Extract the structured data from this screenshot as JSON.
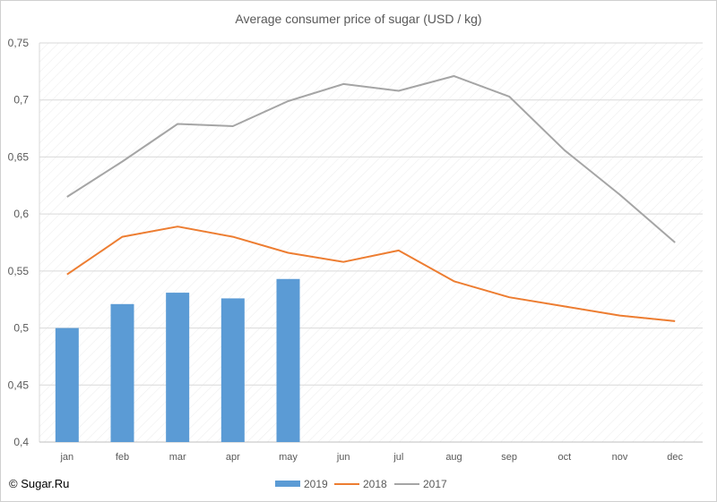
{
  "chart_data": {
    "type": "bar",
    "title": "Average consumer price of sugar (USD / kg)",
    "xlabel": "",
    "ylabel": "",
    "categories": [
      "jan",
      "feb",
      "mar",
      "apr",
      "may",
      "jun",
      "jul",
      "aug",
      "sep",
      "oct",
      "nov",
      "dec"
    ],
    "ylim": [
      0.4,
      0.75
    ],
    "yticks": [
      0.4,
      0.45,
      0.5,
      0.55,
      0.6,
      0.65,
      0.7,
      0.75
    ],
    "ytick_labels": [
      "0,4",
      "0,45",
      "0,5",
      "0,55",
      "0,6",
      "0,65",
      "0,7",
      "0,75"
    ],
    "grid": true,
    "legend_position": "bottom",
    "series": [
      {
        "name": "2019",
        "type": "bar",
        "color": "#5b9bd5",
        "values": [
          0.5,
          0.521,
          0.531,
          0.526,
          0.543,
          null,
          null,
          null,
          null,
          null,
          null,
          null
        ]
      },
      {
        "name": "2018",
        "type": "line",
        "color": "#ed7d31",
        "values": [
          0.547,
          0.58,
          0.589,
          0.58,
          0.566,
          0.558,
          0.568,
          0.541,
          0.527,
          0.519,
          0.511,
          0.506
        ]
      },
      {
        "name": "2017",
        "type": "line",
        "color": "#a5a5a5",
        "values": [
          0.615,
          0.646,
          0.679,
          0.677,
          0.699,
          0.714,
          0.708,
          0.721,
          0.703,
          0.656,
          0.617,
          0.575
        ]
      }
    ]
  },
  "footer": {
    "copyright": "© Sugar.Ru"
  }
}
